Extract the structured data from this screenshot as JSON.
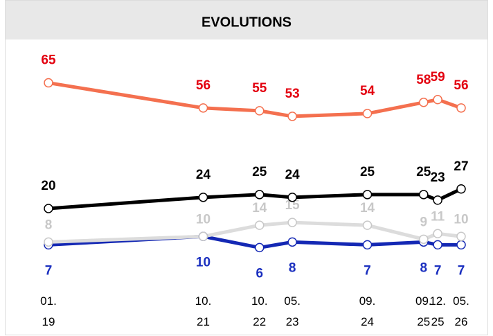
{
  "chart_data": {
    "type": "line",
    "title": "EVOLUTIONS",
    "x": [
      "01. 19",
      "10. 21",
      "10. 22",
      "05. 23",
      "09. 24",
      "09. 25",
      "12. 25",
      "05. 26"
    ],
    "ylim": [
      0,
      70
    ],
    "series": [
      {
        "color": "#f4704f",
        "label_color": "#e3000f",
        "label_side": "above",
        "values": [
          65,
          56,
          55,
          53,
          54,
          58,
          59,
          56
        ]
      },
      {
        "color": "#000000",
        "label_color": "#000000",
        "label_side": "above",
        "values": [
          20,
          24,
          25,
          24,
          25,
          25,
          23,
          27
        ]
      },
      {
        "color": "#dcdcdc",
        "label_color": "#c8c8c8",
        "label_side": "above",
        "values": [
          8,
          10,
          14,
          15,
          14,
          9,
          11,
          10
        ]
      },
      {
        "color": "#1428b4",
        "label_color": "#1a2fbf",
        "label_side": "below",
        "values": [
          7,
          10,
          6,
          8,
          7,
          8,
          7,
          7
        ]
      }
    ]
  }
}
